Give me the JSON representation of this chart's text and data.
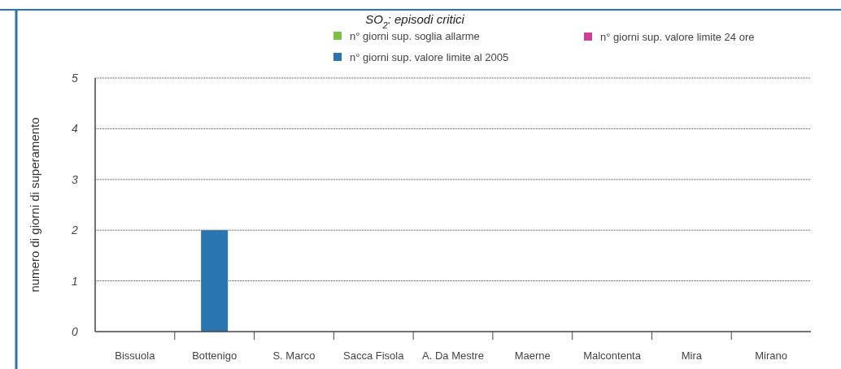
{
  "chart_data": {
    "type": "bar",
    "title": "SO$_{2}$: episodi critici",
    "ylabel": "numero di giorni di superamento",
    "categories": [
      "Bissuola",
      "Bottenigo",
      "S. Marco",
      "Sacca Fisola",
      "A. Da Mestre",
      "Maerne",
      "Malcontenta",
      "Mira",
      "Mirano"
    ],
    "series": [
      {
        "name": "n° giorni sup. soglia allarme",
        "color": "#7cc242",
        "values": [
          0,
          0,
          0,
          0,
          0,
          0,
          0,
          0,
          0
        ]
      },
      {
        "name": "n° giorni sup. valore limite 24 ore",
        "color": "#cc3f97",
        "values": [
          0,
          0,
          0,
          0,
          0,
          0,
          0,
          0,
          0
        ]
      },
      {
        "name": "n° giorni sup. valore limite al 2005",
        "color": "#2a74b0",
        "values": [
          0,
          2,
          0,
          0,
          0,
          0,
          0,
          0,
          0
        ]
      }
    ],
    "stacked": true,
    "ylim": [
      0,
      5
    ],
    "yticks": [
      0,
      1,
      2,
      3,
      4,
      5
    ],
    "grid": "y",
    "legend": "top"
  }
}
